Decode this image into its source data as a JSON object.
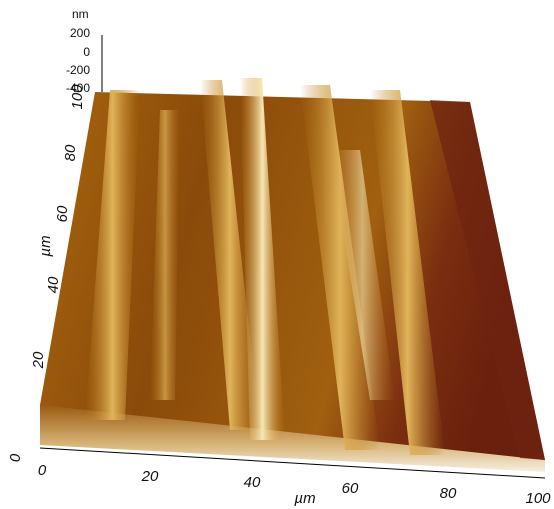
{
  "z_axis": {
    "unit": "nm",
    "ticks": [
      "200",
      "0",
      "-200",
      "-400"
    ]
  },
  "y_axis": {
    "unit": "µm",
    "ticks": [
      "0",
      "20",
      "40",
      "60",
      "80",
      "100"
    ]
  },
  "x_axis": {
    "unit": "µm",
    "ticks": [
      "0",
      "20",
      "40",
      "60",
      "80",
      "100"
    ]
  }
}
